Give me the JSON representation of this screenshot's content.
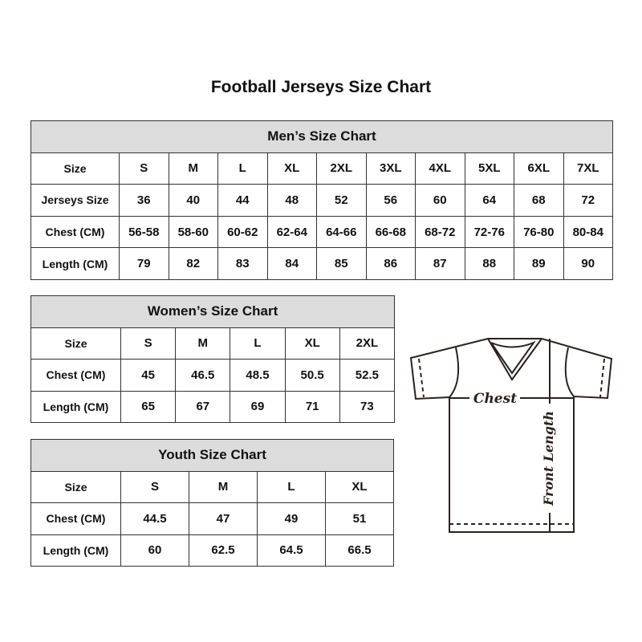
{
  "title": "Football Jerseys Size Chart",
  "men": {
    "caption": "Men’s Size Chart",
    "rows": [
      [
        "Size",
        "S",
        "M",
        "L",
        "XL",
        "2XL",
        "3XL",
        "4XL",
        "5XL",
        "6XL",
        "7XL"
      ],
      [
        "Jerseys Size",
        "36",
        "40",
        "44",
        "48",
        "52",
        "56",
        "60",
        "64",
        "68",
        "72"
      ],
      [
        "Chest (CM)",
        "56-58",
        "58-60",
        "60-62",
        "62-64",
        "64-66",
        "66-68",
        "68-72",
        "72-76",
        "76-80",
        "80-84"
      ],
      [
        "Length (CM)",
        "79",
        "82",
        "83",
        "84",
        "85",
        "86",
        "87",
        "88",
        "89",
        "90"
      ]
    ]
  },
  "women": {
    "caption": "Women’s Size Chart",
    "rows": [
      [
        "Size",
        "S",
        "M",
        "L",
        "XL",
        "2XL"
      ],
      [
        "Chest (CM)",
        "45",
        "46.5",
        "48.5",
        "50.5",
        "52.5"
      ],
      [
        "Length (CM)",
        "65",
        "67",
        "69",
        "71",
        "73"
      ]
    ]
  },
  "youth": {
    "caption": "Youth Size Chart",
    "rows": [
      [
        "Size",
        "S",
        "M",
        "L",
        "XL"
      ],
      [
        "Chest (CM)",
        "44.5",
        "47",
        "49",
        "51"
      ],
      [
        "Length (CM)",
        "60",
        "62.5",
        "64.5",
        "66.5"
      ]
    ]
  },
  "diagram": {
    "chest_label": "Chest",
    "length_label": "Front Length"
  }
}
